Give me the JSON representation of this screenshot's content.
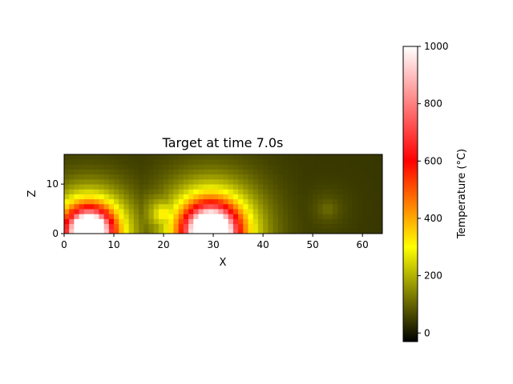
{
  "chart_data": {
    "type": "heatmap",
    "title": "Target at time 7.0s",
    "xlabel": "X",
    "ylabel": "Z",
    "xlim": [
      0,
      64
    ],
    "ylim": [
      0,
      16
    ],
    "x_ticks": [
      0,
      10,
      20,
      30,
      40,
      50,
      60
    ],
    "y_ticks": [
      0,
      10
    ],
    "grid_cols": 64,
    "grid_rows": 16,
    "colormap": {
      "name": "black-yellow-red-white",
      "stops": [
        {
          "value": -30,
          "color": "#000000"
        },
        {
          "value": 300,
          "color": "#ffff00"
        },
        {
          "value": 600,
          "color": "#ff0000"
        },
        {
          "value": 1000,
          "color": "#ffffff"
        }
      ]
    },
    "ambient": 40,
    "hotspots": [
      {
        "x": 5,
        "z": 0.5,
        "peak": 1000,
        "core_radius": 3.2,
        "decay": 7.0
      },
      {
        "x": 29.5,
        "z": 0.5,
        "peak": 1000,
        "core_radius": 3.8,
        "decay": 8.0
      },
      {
        "x": 20,
        "z": 4,
        "peak": 390,
        "core_radius": 0,
        "decay": 6.5
      },
      {
        "x": 53,
        "z": 5,
        "peak": 120,
        "core_radius": 0,
        "decay": 6.0
      }
    ],
    "colorbar": {
      "label": "Temperature (°C)",
      "min": -30,
      "max": 1000,
      "ticks": [
        0,
        200,
        400,
        600,
        800,
        1000
      ]
    }
  }
}
